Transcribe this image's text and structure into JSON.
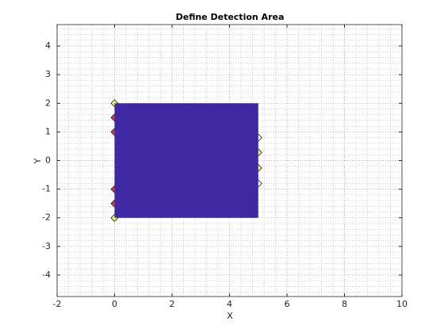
{
  "chart_data": {
    "type": "patch",
    "title": "Define Detection Area",
    "x_label": "X",
    "y_label": "Y",
    "xlim": [
      -2,
      10
    ],
    "ylim": [
      -4.75,
      4.75
    ],
    "xticks": [
      -2,
      0,
      2,
      4,
      6,
      8,
      10
    ],
    "yticks": [
      -4,
      -3,
      -2,
      -1,
      0,
      1,
      2,
      3,
      4
    ],
    "grid": "minor",
    "patch": {
      "x": [
        0,
        5,
        5,
        0
      ],
      "y": [
        -2,
        -2,
        2,
        2
      ],
      "color": "#3f29a3"
    },
    "series": [
      {
        "color": "#f2f26a",
        "x": [
          0,
          0,
          5,
          5
        ],
        "values": [
          2,
          -2,
          0.28,
          -0.26
        ]
      },
      {
        "color": "#e03a3a",
        "x": [
          0,
          0,
          0,
          0
        ],
        "values": [
          1.5,
          1,
          -1,
          -1.5
        ]
      },
      {
        "color": "#ffffff",
        "x": [
          5,
          5
        ],
        "values": [
          0.8,
          -0.8
        ]
      }
    ]
  }
}
